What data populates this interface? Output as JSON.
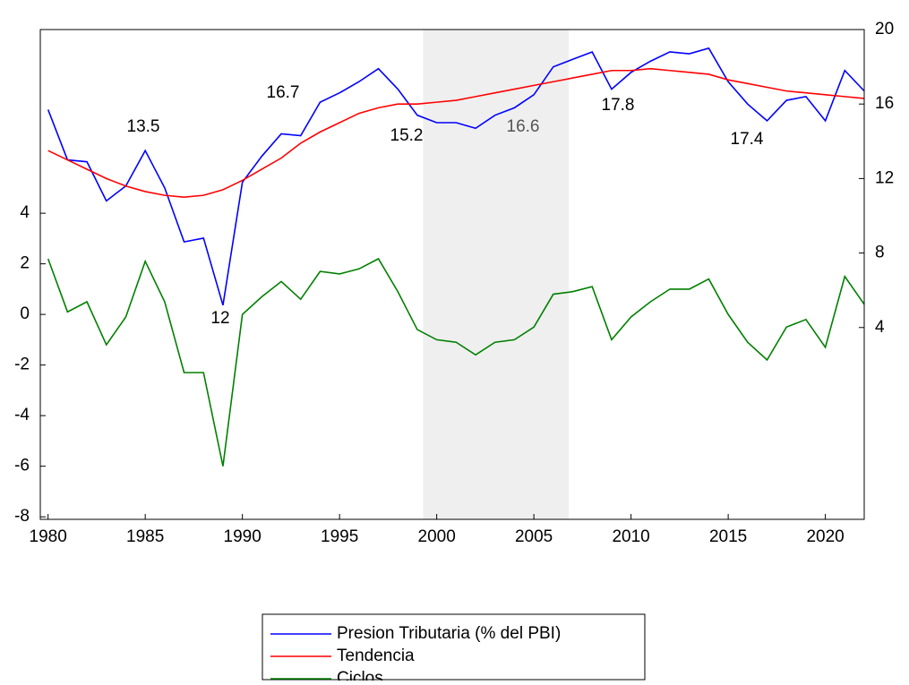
{
  "chart_data": {
    "type": "line",
    "x": [
      1980,
      1981,
      1982,
      1983,
      1984,
      1985,
      1986,
      1987,
      1988,
      1989,
      1990,
      1991,
      1992,
      1993,
      1994,
      1995,
      1996,
      1997,
      1998,
      1999,
      2000,
      2001,
      2002,
      2003,
      2004,
      2005,
      2006,
      2007,
      2008,
      2009,
      2010,
      2011,
      2012,
      2013,
      2014,
      2015,
      2016,
      2017,
      2018,
      2019,
      2020,
      2021,
      2022
    ],
    "xlim": [
      1979.6,
      2022
    ],
    "xticks": [
      1980,
      1985,
      1990,
      1995,
      2000,
      2005,
      2010,
      2015,
      2020
    ],
    "ylim": [
      -8.1,
      11.26
    ],
    "yticks": [
      -8,
      -6,
      -4,
      -2,
      0,
      2,
      4
    ],
    "y2lim": [
      -6.3,
      20
    ],
    "y2ticks": [
      4,
      8,
      12,
      16,
      20
    ],
    "shaded": {
      "x": [
        1999.3,
        2006.8
      ],
      "color": "#efefef"
    },
    "series": [
      {
        "name": "Presion Tributaria (% del PBI)",
        "color": "#0000ff",
        "axis": "y2",
        "values": [
          15.7,
          13.0,
          12.9,
          10.8,
          11.6,
          13.5,
          11.5,
          8.6,
          8.8,
          5.2,
          11.8,
          13.2,
          14.4,
          14.3,
          16.1,
          16.6,
          17.2,
          17.9,
          16.8,
          15.4,
          15.0,
          15.0,
          14.7,
          15.4,
          15.8,
          16.5,
          18.0,
          18.4,
          18.8,
          16.8,
          17.7,
          18.3,
          18.8,
          18.7,
          19.0,
          17.2,
          16.0,
          15.1,
          16.2,
          16.4,
          15.1,
          17.8,
          16.7
        ]
      },
      {
        "name": "Tendencia",
        "color": "#ff0000",
        "axis": "y2",
        "values": [
          13.5,
          13.0,
          12.5,
          12.0,
          11.6,
          11.3,
          11.1,
          11.0,
          11.1,
          11.4,
          11.9,
          12.5,
          13.1,
          13.9,
          14.5,
          15.0,
          15.5,
          15.8,
          16.0,
          16.0,
          16.1,
          16.2,
          16.4,
          16.6,
          16.8,
          17.0,
          17.2,
          17.4,
          17.6,
          17.8,
          17.8,
          17.9,
          17.8,
          17.7,
          17.6,
          17.3,
          17.1,
          16.9,
          16.7,
          16.6,
          16.5,
          16.4,
          16.3
        ]
      },
      {
        "name": "Ciclos",
        "color": "#008000",
        "values": [
          2.2,
          0.1,
          0.5,
          -1.2,
          -0.1,
          2.1,
          0.5,
          -2.3,
          -2.3,
          -6.0,
          0.0,
          0.7,
          1.3,
          0.6,
          1.7,
          1.6,
          1.8,
          2.2,
          0.9,
          -0.6,
          -1.0,
          -1.1,
          -1.6,
          -1.1,
          -1.0,
          -0.5,
          0.8,
          0.9,
          1.1,
          -1.0,
          -0.1,
          0.5,
          1.0,
          1.0,
          1.4,
          0.0,
          -1.1,
          -1.8,
          -0.5,
          -0.2,
          -1.3,
          1.5,
          0.4
        ]
      }
    ],
    "annotations": [
      {
        "text": "13.5",
        "color": "#000000"
      },
      {
        "text": "16.7",
        "color": "#000000"
      },
      {
        "text": "12",
        "color": "#000000"
      },
      {
        "text": "15.2",
        "color": "#000000"
      },
      {
        "text": "16.6",
        "color": "#555555"
      },
      {
        "text": "17.8",
        "color": "#000000"
      },
      {
        "text": "17.4",
        "color": "#000000"
      }
    ]
  }
}
